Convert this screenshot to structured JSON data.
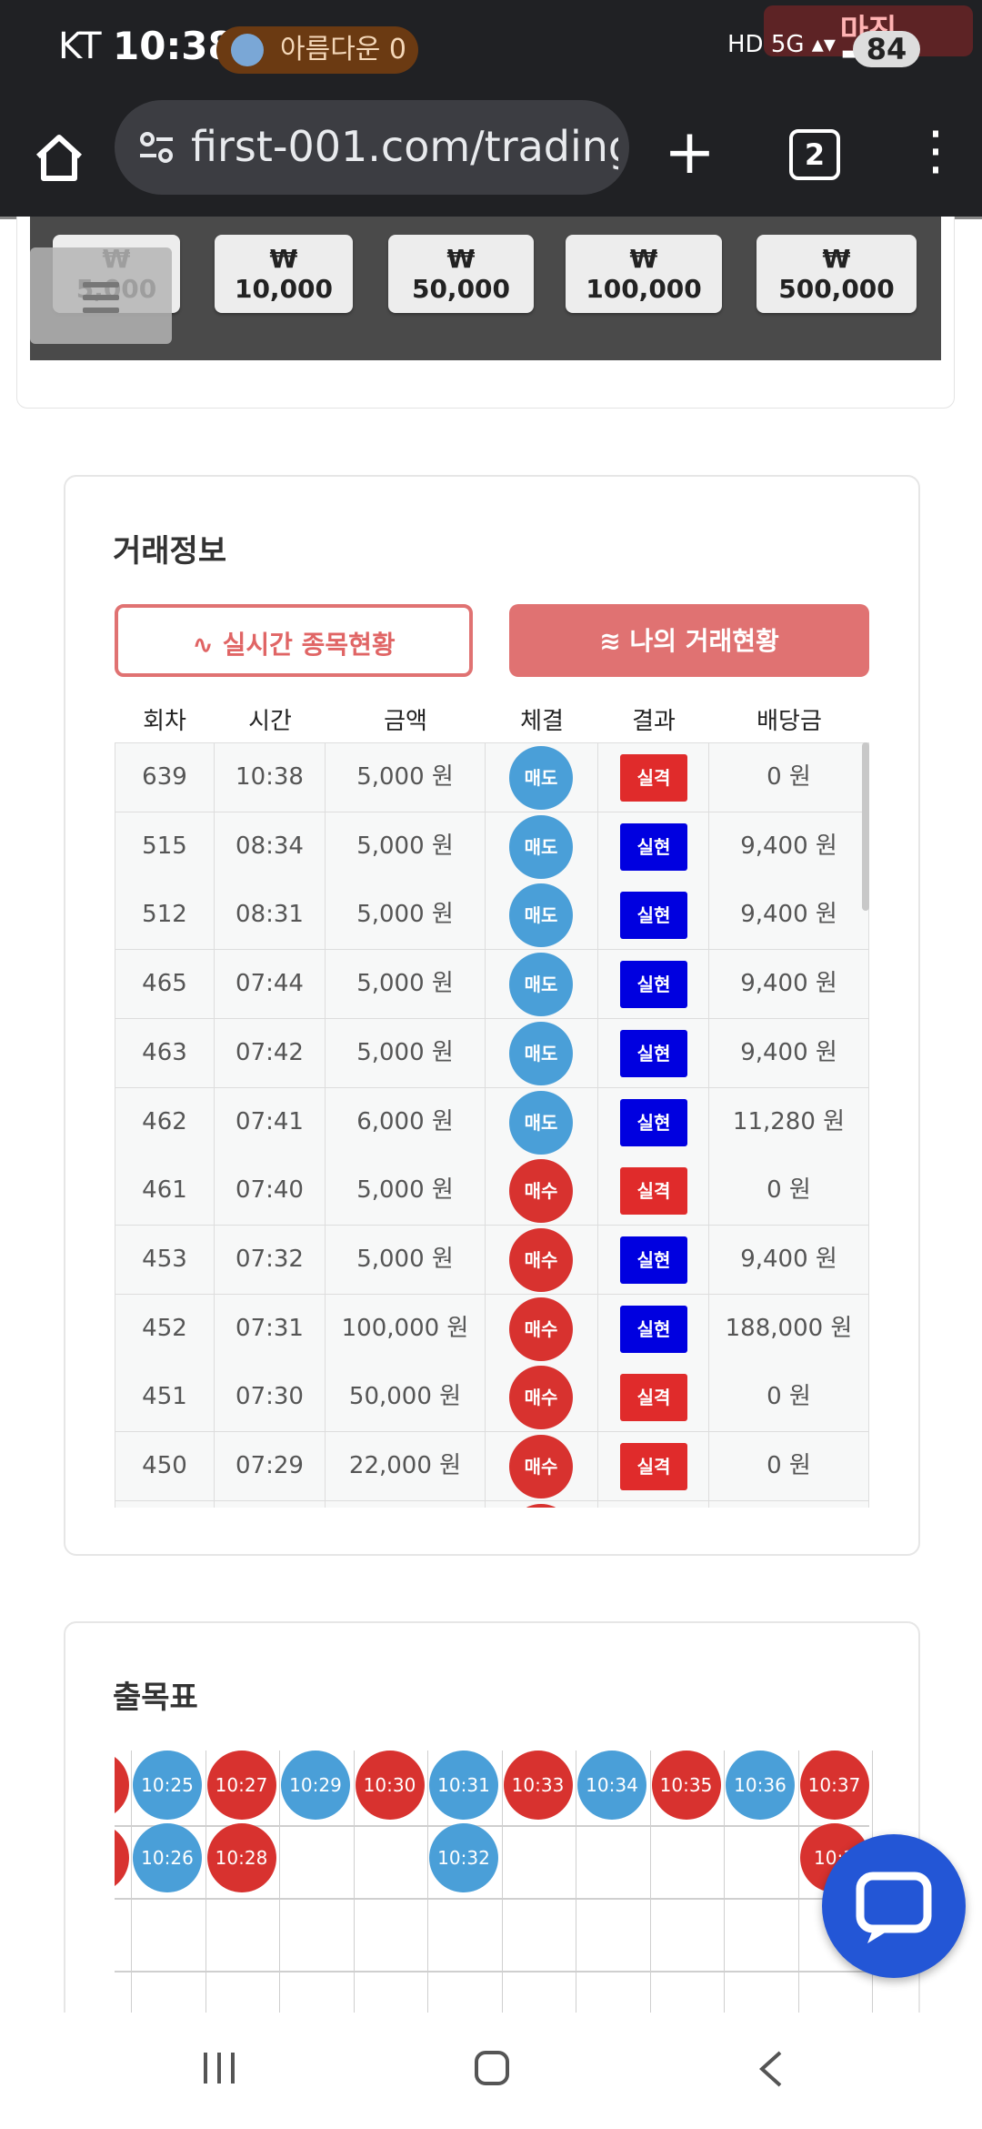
{
  "status_bar": {
    "carrier": "KT",
    "time": "10:38",
    "notification": "아름다운 0",
    "battery": "84",
    "watermark": "마진"
  },
  "browser": {
    "url": "first-001.com/trading",
    "tab_count": "2"
  },
  "amount_buttons": [
    "₩ 5,000",
    "₩ 10,000",
    "₩ 50,000",
    "₩ 100,000",
    "₩ 500,000"
  ],
  "trade_info": {
    "title": "거래정보",
    "btn_realtime": "실시간 종목현황",
    "btn_my_trades": "나의 거래현황",
    "columns": [
      "회차",
      "시간",
      "금액",
      "체결",
      "결과",
      "배당금"
    ],
    "rows": [
      {
        "round": "639",
        "time": "10:38",
        "amount": "5,000 원",
        "exec": "매도",
        "result": "실격",
        "payout": "0 원"
      },
      {
        "round": "515",
        "time": "08:34",
        "amount": "5,000 원",
        "exec": "매도",
        "result": "실현",
        "payout": "9,400 원"
      },
      {
        "round": "512",
        "time": "08:31",
        "amount": "5,000 원",
        "exec": "매도",
        "result": "실현",
        "payout": "9,400 원"
      },
      {
        "round": "465",
        "time": "07:44",
        "amount": "5,000 원",
        "exec": "매도",
        "result": "실현",
        "payout": "9,400 원"
      },
      {
        "round": "463",
        "time": "07:42",
        "amount": "5,000 원",
        "exec": "매도",
        "result": "실현",
        "payout": "9,400 원"
      },
      {
        "round": "462",
        "time": "07:41",
        "amount": "6,000 원",
        "exec": "매도",
        "result": "실현",
        "payout": "11,280 원"
      },
      {
        "round": "461",
        "time": "07:40",
        "amount": "5,000 원",
        "exec": "매수",
        "result": "실격",
        "payout": "0 원"
      },
      {
        "round": "453",
        "time": "07:32",
        "amount": "5,000 원",
        "exec": "매수",
        "result": "실현",
        "payout": "9,400 원"
      },
      {
        "round": "452",
        "time": "07:31",
        "amount": "100,000 원",
        "exec": "매수",
        "result": "실현",
        "payout": "188,000 원"
      },
      {
        "round": "451",
        "time": "07:30",
        "amount": "50,000 원",
        "exec": "매수",
        "result": "실격",
        "payout": "0 원"
      },
      {
        "round": "450",
        "time": "07:29",
        "amount": "22,000 원",
        "exec": "매수",
        "result": "실격",
        "payout": "0 원"
      }
    ]
  },
  "chulmok": {
    "title": "출목표",
    "row1": [
      {
        "label": "10:25",
        "side": "sell"
      },
      {
        "label": "10:27",
        "side": "buy"
      },
      {
        "label": "10:29",
        "side": "sell"
      },
      {
        "label": "10:30",
        "side": "buy"
      },
      {
        "label": "10:31",
        "side": "sell"
      },
      {
        "label": "10:33",
        "side": "buy"
      },
      {
        "label": "10:34",
        "side": "sell"
      },
      {
        "label": "10:35",
        "side": "buy"
      },
      {
        "label": "10:36",
        "side": "sell"
      },
      {
        "label": "10:37",
        "side": "buy"
      }
    ],
    "row2": [
      {
        "col": 0,
        "label": "10:26",
        "side": "sell"
      },
      {
        "col": 1,
        "label": "10:28",
        "side": "buy"
      },
      {
        "col": 4,
        "label": "10:32",
        "side": "sell"
      },
      {
        "col": 9,
        "label": "10:3",
        "side": "buy"
      }
    ]
  },
  "colors": {
    "sell": "#4a9fd8",
    "buy": "#d8322f",
    "fail": "#e02b2b",
    "success": "#0000e0",
    "accent": "#e07272",
    "chat": "#2356d6"
  }
}
